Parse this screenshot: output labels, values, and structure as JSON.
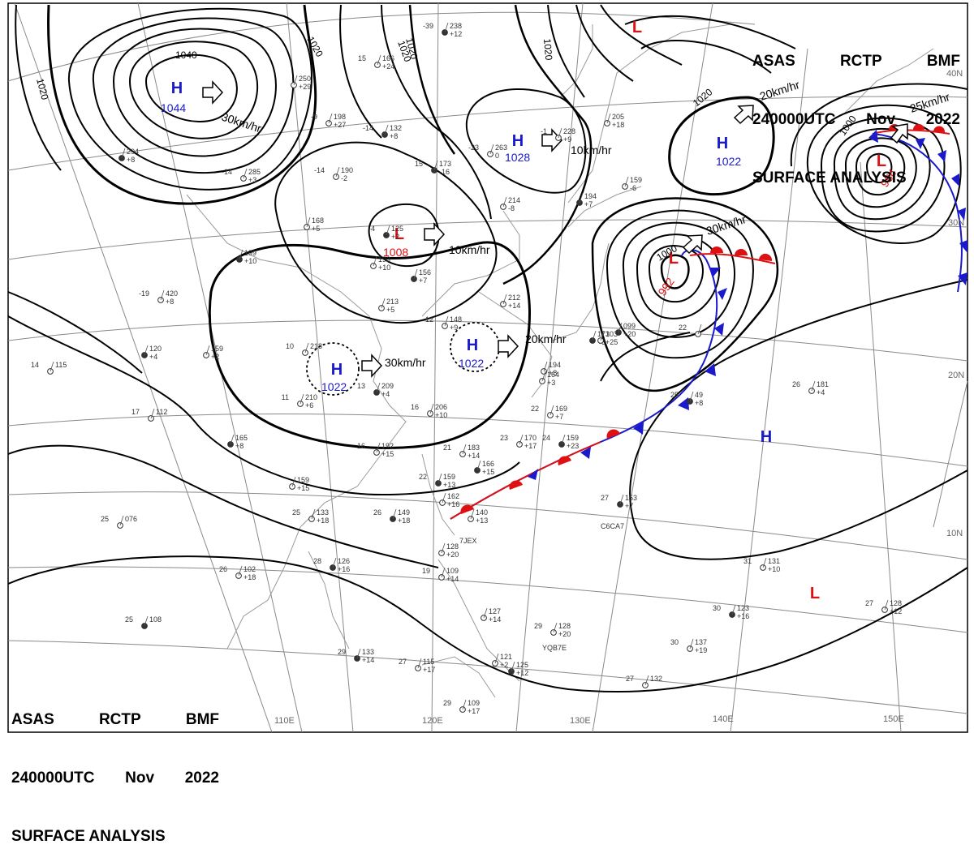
{
  "header": {
    "line1": [
      "ASAS",
      "RCTP",
      "BMF"
    ],
    "line2": [
      "240000UTC",
      "Nov",
      "2022"
    ],
    "line3": "SURFACE ANALYSIS"
  },
  "colors": {
    "high": "#1a1acc",
    "low": "#dd1111",
    "cold_front": "#1a1acc",
    "warm_front": "#dd1111",
    "isobar": "#000000",
    "grid": "#888888"
  },
  "pressure_centers": [
    {
      "type": "H",
      "value": "1044",
      "motion": "30km/hr"
    },
    {
      "type": "H",
      "value": "1028",
      "motion": "10km/hr"
    },
    {
      "type": "H",
      "value": "1022",
      "motion": "20km/hr"
    },
    {
      "type": "L",
      "value": "1008",
      "motion": "10km/hr"
    },
    {
      "type": "H",
      "value": "1022",
      "motion": "30km/hr"
    },
    {
      "type": "H",
      "value": "1022",
      "motion": "20km/hr"
    },
    {
      "type": "L",
      "value": "992",
      "motion": "30km/hr"
    },
    {
      "type": "L",
      "value": "984",
      "motion": "25km/hr"
    },
    {
      "type": "H",
      "value": "",
      "motion": ""
    },
    {
      "type": "L",
      "value": "",
      "motion": ""
    },
    {
      "type": "L",
      "value": "",
      "motion": ""
    }
  ],
  "isobar_labels": [
    "1040",
    "1020",
    "1020",
    "1020",
    "1020",
    "1020",
    "1000",
    "1000",
    "1020"
  ],
  "longitude_labels": [
    "110E",
    "120E",
    "130E",
    "140E",
    "150E"
  ],
  "latitude_labels": [
    "40N",
    "30N",
    "20N",
    "10N"
  ],
  "stations": [
    {
      "tt": "-39",
      "pp": "238",
      "tend": "+12"
    },
    {
      "tt": "15",
      "pp": "166",
      "tend": "+24"
    },
    {
      "tt": "-9",
      "pp": "198",
      "tend": "+27"
    },
    {
      "tt": "-14",
      "pp": "132",
      "tend": "+8"
    },
    {
      "tt": "-14",
      "pp": "190",
      "tend": "-2"
    },
    {
      "tt": "-14",
      "pp": "285",
      "tend": "+3"
    },
    {
      "tt": "15",
      "pp": "173",
      "tend": "-16"
    },
    {
      "tt": "-23",
      "pp": "263",
      "tend": "0"
    },
    {
      "tt": "-1",
      "pp": "228",
      "tend": "+9"
    },
    {
      "tt": "-4",
      "pp": "125",
      "tend": "+2"
    },
    {
      "tt": "",
      "pp": "193",
      "tend": "+10"
    },
    {
      "tt": "",
      "pp": "168",
      "tend": "+5"
    },
    {
      "tt": "",
      "pp": "199",
      "tend": "+10"
    },
    {
      "tt": "-19",
      "pp": "420",
      "tend": "+8"
    },
    {
      "tt": "",
      "pp": "213",
      "tend": "+5"
    },
    {
      "tt": "",
      "pp": "294",
      "tend": "+8"
    },
    {
      "tt": "",
      "pp": "250",
      "tend": "+29"
    },
    {
      "tt": "",
      "pp": "214",
      "tend": "-8"
    },
    {
      "tt": "",
      "pp": "194",
      "tend": "+7"
    },
    {
      "tt": "",
      "pp": "205",
      "tend": "+18"
    },
    {
      "tt": "",
      "pp": "159",
      "tend": "-6"
    },
    {
      "tt": "",
      "pp": "156",
      "tend": "+7"
    },
    {
      "tt": "",
      "pp": "212",
      "tend": "+14"
    },
    {
      "tt": "12",
      "pp": "148",
      "tend": "+9"
    },
    {
      "tt": "",
      "pp": "173",
      "tend": "+3"
    },
    {
      "tt": "10",
      "pp": "218",
      "tend": ""
    },
    {
      "tt": "",
      "pp": "159",
      "tend": "+2"
    },
    {
      "tt": "",
      "pp": "120",
      "tend": "+4"
    },
    {
      "tt": "14",
      "pp": "115",
      "tend": ""
    },
    {
      "tt": "11",
      "pp": "210",
      "tend": "+6"
    },
    {
      "tt": "13",
      "pp": "209",
      "tend": "+4"
    },
    {
      "tt": "16",
      "pp": "206",
      "tend": "+10"
    },
    {
      "tt": "17",
      "pp": "112",
      "tend": ""
    },
    {
      "tt": "",
      "pp": "165",
      "tend": "+8"
    },
    {
      "tt": "16",
      "pp": "192",
      "tend": "+15"
    },
    {
      "tt": "21",
      "pp": "183",
      "tend": "+14"
    },
    {
      "tt": "",
      "pp": "166",
      "tend": "+15"
    },
    {
      "tt": "22",
      "pp": "169",
      "tend": "+7"
    },
    {
      "tt": "23",
      "pp": "170",
      "tend": "+17"
    },
    {
      "tt": "24",
      "pp": "159",
      "tend": "+23"
    },
    {
      "tt": "",
      "pp": "194",
      "tend": "+8"
    },
    {
      "tt": "",
      "pp": "164",
      "tend": "+3"
    },
    {
      "tt": "",
      "pp": "099",
      "tend": "+20"
    },
    {
      "tt": "",
      "pp": "103",
      "tend": "+25"
    },
    {
      "tt": "22",
      "pp": "",
      "tend": ""
    },
    {
      "tt": "25",
      "pp": "49",
      "tend": "+8"
    },
    {
      "tt": "26",
      "pp": "181",
      "tend": "+4"
    },
    {
      "tt": "",
      "pp": "159",
      "tend": "+15"
    },
    {
      "tt": "22",
      "pp": "159",
      "tend": "+13"
    },
    {
      "tt": "",
      "pp": "162",
      "tend": "+16"
    },
    {
      "tt": "",
      "pp": "140",
      "tend": "+13"
    },
    {
      "tt": "26",
      "pp": "149",
      "tend": "+18"
    },
    {
      "tt": "25",
      "pp": "133",
      "tend": "+18"
    },
    {
      "tt": "25",
      "pp": "076",
      "tend": ""
    },
    {
      "tt": "27",
      "pp": "153",
      "tend": "+7"
    },
    {
      "tt": "",
      "pp": "128",
      "tend": "+20"
    },
    {
      "tt": "19",
      "pp": "109",
      "tend": "+14"
    },
    {
      "tt": "28",
      "pp": "126",
      "tend": "+16"
    },
    {
      "tt": "26",
      "pp": "102",
      "tend": "+18"
    },
    {
      "tt": "31",
      "pp": "131",
      "tend": "+10"
    },
    {
      "tt": "25",
      "pp": "108",
      "tend": ""
    },
    {
      "tt": "",
      "pp": "127",
      "tend": "+14"
    },
    {
      "tt": "29",
      "pp": "128",
      "tend": "+20"
    },
    {
      "tt": "30",
      "pp": "123",
      "tend": "+16"
    },
    {
      "tt": "30",
      "pp": "137",
      "tend": "+19"
    },
    {
      "tt": "27",
      "pp": "128",
      "tend": "+12"
    },
    {
      "tt": "29",
      "pp": "133",
      "tend": "+14"
    },
    {
      "tt": "27",
      "pp": "115",
      "tend": "+17"
    },
    {
      "tt": "",
      "pp": "121",
      "tend": "+2"
    },
    {
      "tt": "",
      "pp": "125",
      "tend": "+12"
    },
    {
      "tt": "27",
      "pp": "132",
      "tend": ""
    },
    {
      "tt": "29",
      "pp": "109",
      "tend": "+17"
    }
  ],
  "ship_ids": [
    "7JEX",
    "C6CA7",
    "YQB7E"
  ]
}
